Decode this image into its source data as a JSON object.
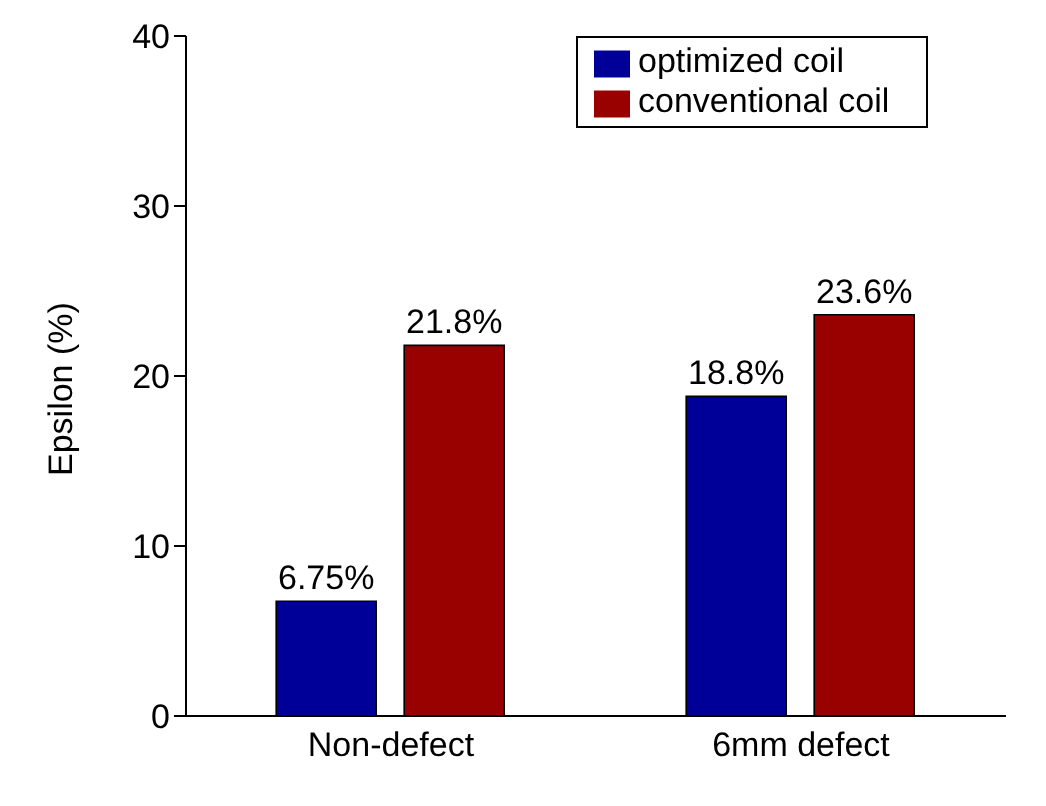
{
  "chart_data": {
    "type": "bar",
    "ylabel": "Epsilon (%)",
    "categories": [
      "Non-defect",
      "6mm defect"
    ],
    "series": [
      {
        "name": "optimized coil",
        "color": "#000099",
        "values": [
          6.75,
          18.8
        ],
        "value_labels": [
          "6.75%",
          "18.8%"
        ]
      },
      {
        "name": "conventional coil",
        "color": "#990000",
        "values": [
          21.8,
          23.6
        ],
        "value_labels": [
          "21.8%",
          "23.6%"
        ]
      }
    ],
    "ylim": [
      0,
      40
    ],
    "yticks": [
      0,
      10,
      20,
      30,
      40
    ],
    "grid": false,
    "legend": "top right"
  }
}
